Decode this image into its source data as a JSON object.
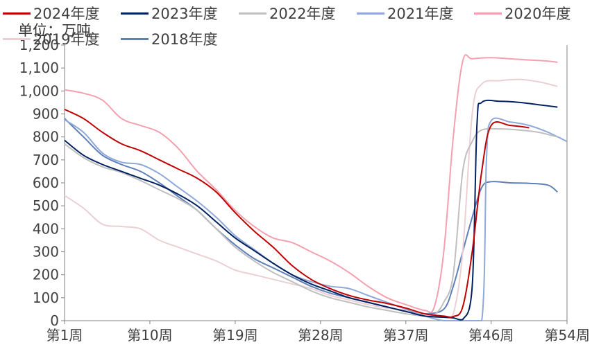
{
  "chart_data": {
    "type": "line",
    "unit_label": "单位：万吨",
    "ylim": [
      0,
      1200
    ],
    "yticks": [
      0,
      100,
      200,
      300,
      400,
      500,
      600,
      700,
      800,
      900,
      1000,
      1100,
      1200
    ],
    "ytick_labels": [
      "0",
      "100",
      "200",
      "300",
      "400",
      "500",
      "600",
      "700",
      "800",
      "900",
      "1,000",
      "1,100",
      "1,200"
    ],
    "xlim": [
      1,
      54
    ],
    "xticks": [
      1,
      10,
      19,
      28,
      37,
      46,
      54
    ],
    "xtick_labels": [
      "第1周",
      "第10周",
      "第19周",
      "第28周",
      "第37周",
      "第46周",
      "第54周"
    ],
    "legend_position": "top",
    "series": [
      {
        "name": "2024年度",
        "color": "#C00000",
        "points": [
          [
            1,
            920
          ],
          [
            3,
            880
          ],
          [
            5,
            820
          ],
          [
            7,
            770
          ],
          [
            9,
            740
          ],
          [
            11,
            700
          ],
          [
            13,
            660
          ],
          [
            15,
            620
          ],
          [
            17,
            560
          ],
          [
            19,
            470
          ],
          [
            21,
            390
          ],
          [
            23,
            320
          ],
          [
            25,
            240
          ],
          [
            27,
            180
          ],
          [
            29,
            140
          ],
          [
            31,
            110
          ],
          [
            33,
            90
          ],
          [
            35,
            75
          ],
          [
            37,
            55
          ],
          [
            39,
            30
          ],
          [
            41,
            20
          ],
          [
            42,
            18
          ],
          [
            43,
            60
          ],
          [
            44,
            300
          ],
          [
            45,
            650
          ],
          [
            46,
            850
          ],
          [
            48,
            850
          ],
          [
            50,
            840
          ]
        ]
      },
      {
        "name": "2023年度",
        "color": "#002060",
        "points": [
          [
            1,
            785
          ],
          [
            3,
            720
          ],
          [
            5,
            680
          ],
          [
            7,
            650
          ],
          [
            9,
            620
          ],
          [
            11,
            590
          ],
          [
            13,
            550
          ],
          [
            15,
            500
          ],
          [
            17,
            430
          ],
          [
            19,
            360
          ],
          [
            21,
            305
          ],
          [
            23,
            250
          ],
          [
            25,
            200
          ],
          [
            27,
            160
          ],
          [
            29,
            130
          ],
          [
            31,
            100
          ],
          [
            33,
            80
          ],
          [
            35,
            60
          ],
          [
            37,
            40
          ],
          [
            39,
            20
          ],
          [
            41,
            15
          ],
          [
            42,
            12
          ],
          [
            43,
            5
          ],
          [
            44,
            150
          ],
          [
            44.5,
            850
          ],
          [
            45,
            950
          ],
          [
            47,
            955
          ],
          [
            49,
            950
          ],
          [
            51,
            940
          ],
          [
            53,
            930
          ]
        ]
      },
      {
        "name": "2022年度",
        "color": "#BFBFBF",
        "points": [
          [
            1,
            770
          ],
          [
            3,
            710
          ],
          [
            5,
            670
          ],
          [
            7,
            645
          ],
          [
            9,
            610
          ],
          [
            11,
            570
          ],
          [
            13,
            530
          ],
          [
            15,
            480
          ],
          [
            17,
            400
          ],
          [
            19,
            320
          ],
          [
            21,
            260
          ],
          [
            23,
            210
          ],
          [
            25,
            170
          ],
          [
            27,
            130
          ],
          [
            29,
            100
          ],
          [
            31,
            80
          ],
          [
            33,
            60
          ],
          [
            35,
            45
          ],
          [
            37,
            30
          ],
          [
            39,
            20
          ],
          [
            40,
            25
          ],
          [
            41,
            80
          ],
          [
            42,
            200
          ],
          [
            43,
            650
          ],
          [
            44,
            780
          ],
          [
            45,
            830
          ],
          [
            47,
            835
          ],
          [
            49,
            830
          ],
          [
            51,
            820
          ],
          [
            53,
            800
          ]
        ]
      },
      {
        "name": "2021年度",
        "color": "#8FA8D8",
        "points": [
          [
            1,
            875
          ],
          [
            3,
            820
          ],
          [
            5,
            730
          ],
          [
            7,
            690
          ],
          [
            9,
            680
          ],
          [
            11,
            640
          ],
          [
            13,
            580
          ],
          [
            15,
            520
          ],
          [
            17,
            450
          ],
          [
            19,
            370
          ],
          [
            21,
            310
          ],
          [
            23,
            250
          ],
          [
            25,
            200
          ],
          [
            27,
            170
          ],
          [
            29,
            150
          ],
          [
            31,
            140
          ],
          [
            33,
            110
          ],
          [
            35,
            80
          ],
          [
            37,
            50
          ],
          [
            39,
            20
          ],
          [
            41,
            0
          ],
          [
            43,
            0
          ],
          [
            45,
            0
          ],
          [
            45.5,
            700
          ],
          [
            46,
            870
          ],
          [
            48,
            865
          ],
          [
            50,
            850
          ],
          [
            52,
            820
          ],
          [
            54,
            780
          ]
        ]
      },
      {
        "name": "2020年度",
        "color": "#F4A0AE",
        "points": [
          [
            1,
            1005
          ],
          [
            3,
            990
          ],
          [
            5,
            960
          ],
          [
            7,
            880
          ],
          [
            9,
            850
          ],
          [
            11,
            820
          ],
          [
            13,
            750
          ],
          [
            15,
            650
          ],
          [
            17,
            570
          ],
          [
            19,
            480
          ],
          [
            21,
            410
          ],
          [
            23,
            360
          ],
          [
            25,
            340
          ],
          [
            27,
            300
          ],
          [
            29,
            260
          ],
          [
            31,
            210
          ],
          [
            33,
            150
          ],
          [
            35,
            100
          ],
          [
            37,
            70
          ],
          [
            39,
            45
          ],
          [
            40,
            60
          ],
          [
            41,
            300
          ],
          [
            42,
            800
          ],
          [
            43,
            1130
          ],
          [
            44,
            1140
          ],
          [
            46,
            1145
          ],
          [
            48,
            1140
          ],
          [
            50,
            1135
          ],
          [
            52,
            1130
          ],
          [
            53,
            1125
          ]
        ]
      },
      {
        "name": "2019年度",
        "color": "#EBCFD3",
        "points": [
          [
            1,
            545
          ],
          [
            3,
            490
          ],
          [
            5,
            420
          ],
          [
            7,
            410
          ],
          [
            9,
            400
          ],
          [
            11,
            350
          ],
          [
            13,
            320
          ],
          [
            15,
            290
          ],
          [
            17,
            260
          ],
          [
            19,
            220
          ],
          [
            21,
            200
          ],
          [
            23,
            180
          ],
          [
            25,
            160
          ],
          [
            27,
            140
          ],
          [
            29,
            110
          ],
          [
            31,
            90
          ],
          [
            33,
            70
          ],
          [
            35,
            55
          ],
          [
            37,
            45
          ],
          [
            39,
            30
          ],
          [
            41,
            20
          ],
          [
            42,
            30
          ],
          [
            43,
            300
          ],
          [
            44,
            900
          ],
          [
            45,
            1030
          ],
          [
            47,
            1045
          ],
          [
            49,
            1050
          ],
          [
            51,
            1040
          ],
          [
            53,
            1020
          ]
        ]
      },
      {
        "name": "2018年度",
        "color": "#5E7FB8",
        "points": [
          [
            1,
            880
          ],
          [
            3,
            800
          ],
          [
            5,
            720
          ],
          [
            7,
            680
          ],
          [
            9,
            650
          ],
          [
            11,
            600
          ],
          [
            13,
            540
          ],
          [
            15,
            480
          ],
          [
            17,
            400
          ],
          [
            19,
            330
          ],
          [
            21,
            270
          ],
          [
            23,
            230
          ],
          [
            25,
            190
          ],
          [
            27,
            150
          ],
          [
            29,
            120
          ],
          [
            31,
            100
          ],
          [
            33,
            80
          ],
          [
            35,
            60
          ],
          [
            37,
            40
          ],
          [
            39,
            30
          ],
          [
            41,
            50
          ],
          [
            42,
            150
          ],
          [
            43,
            300
          ],
          [
            44,
            450
          ],
          [
            45,
            580
          ],
          [
            46,
            605
          ],
          [
            48,
            600
          ],
          [
            50,
            598
          ],
          [
            52,
            590
          ],
          [
            53,
            560
          ]
        ]
      }
    ]
  }
}
